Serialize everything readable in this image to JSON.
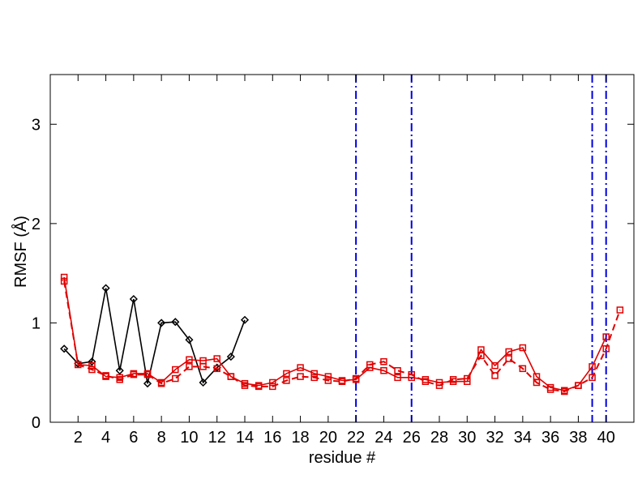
{
  "chart_data": {
    "type": "line",
    "xlabel": "residue #",
    "ylabel": "RMSF (Å)",
    "xlim": [
      0,
      42
    ],
    "ylim": [
      0,
      3.5
    ],
    "xticks": [
      2,
      4,
      6,
      8,
      10,
      12,
      14,
      16,
      18,
      20,
      22,
      24,
      26,
      28,
      30,
      32,
      34,
      36,
      38,
      40
    ],
    "yticks": [
      0,
      1,
      2,
      3
    ],
    "grid": false,
    "colors": {
      "black_series": "#000000",
      "red_series": "#e00000",
      "vlines": "#0000e0"
    },
    "vertical_lines": [
      22,
      26,
      39,
      40
    ],
    "series": [
      {
        "color": "#000000",
        "marker": "diamond",
        "dash": "solid",
        "x": [
          1,
          2,
          3,
          4,
          5,
          6,
          7,
          8,
          9,
          10,
          11,
          12,
          13,
          14
        ],
        "y": [
          0.74,
          0.59,
          0.61,
          1.35,
          0.52,
          1.24,
          0.39,
          1.0,
          1.01,
          0.83,
          0.4,
          0.55,
          0.66,
          1.03
        ]
      },
      {
        "color": "#e00000",
        "marker": "square",
        "dash": "solid",
        "x": [
          1,
          2,
          3,
          4,
          5,
          6,
          7,
          8,
          9,
          10,
          11,
          12,
          13,
          14,
          15,
          16,
          17,
          18,
          19,
          20,
          21,
          22,
          23,
          24,
          25,
          26,
          27,
          28,
          29,
          30,
          31,
          32,
          33,
          34,
          35,
          36,
          37,
          38,
          39,
          40
        ],
        "y": [
          1.46,
          0.58,
          0.57,
          0.46,
          0.45,
          0.49,
          0.49,
          0.4,
          0.53,
          0.63,
          0.62,
          0.64,
          0.46,
          0.39,
          0.37,
          0.4,
          0.49,
          0.55,
          0.49,
          0.46,
          0.42,
          0.43,
          0.55,
          0.52,
          0.45,
          0.45,
          0.43,
          0.4,
          0.41,
          0.41,
          0.73,
          0.57,
          0.71,
          0.75,
          0.46,
          0.35,
          0.32,
          0.37,
          0.56,
          0.86
        ]
      },
      {
        "color": "#e00000",
        "marker": "square",
        "dash": "dashed",
        "x": [
          1,
          2,
          3,
          4,
          5,
          6,
          7,
          8,
          9,
          10,
          11,
          12,
          13,
          14,
          15,
          16,
          17,
          18,
          19,
          20,
          21,
          22,
          23,
          24,
          25,
          26,
          27,
          28,
          29,
          30,
          31,
          32,
          33,
          34,
          35,
          36,
          37,
          38,
          39,
          40,
          41
        ],
        "y": [
          1.42,
          0.58,
          0.53,
          0.47,
          0.43,
          0.48,
          0.48,
          0.39,
          0.44,
          0.56,
          0.56,
          0.54,
          0.46,
          0.37,
          0.36,
          0.36,
          0.42,
          0.46,
          0.45,
          0.42,
          0.41,
          0.44,
          0.58,
          0.61,
          0.52,
          0.48,
          0.41,
          0.37,
          0.43,
          0.44,
          0.67,
          0.47,
          0.64,
          0.54,
          0.4,
          0.33,
          0.31,
          0.37,
          0.45,
          0.74,
          1.13
        ]
      }
    ]
  }
}
